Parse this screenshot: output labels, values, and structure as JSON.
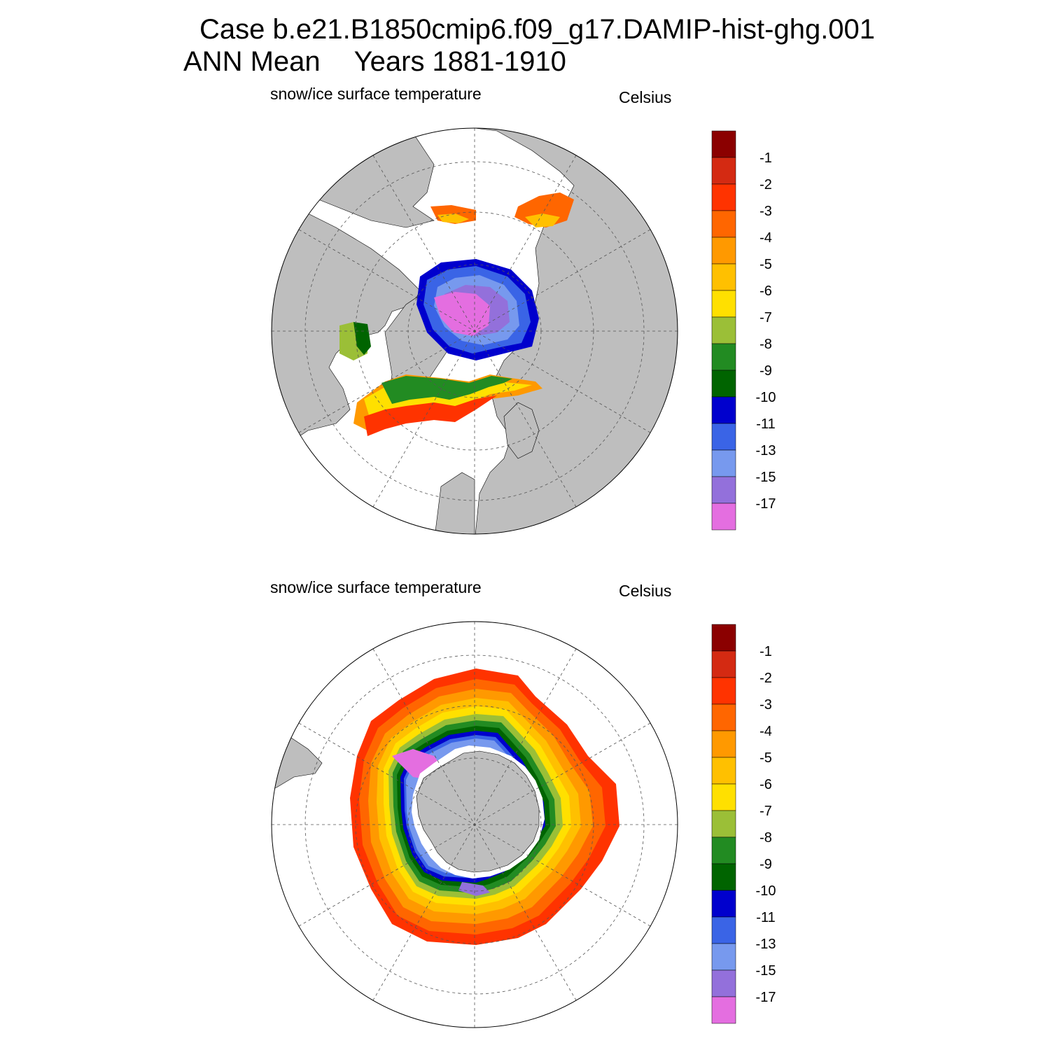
{
  "header": {
    "case_line": "Case b.e21.B1850cmip6.f09_g17.DAMIP-hist-ghg.001",
    "period_label": "ANN Mean",
    "years_label": "Years 1881-1910"
  },
  "panels": [
    {
      "variable_label": "snow/ice surface temperature",
      "units_label": "Celsius",
      "hemisphere": "north"
    },
    {
      "variable_label": "snow/ice surface temperature",
      "units_label": "Celsius",
      "hemisphere": "south"
    }
  ],
  "colorbar": {
    "tick_labels": [
      "-1",
      "-2",
      "-3",
      "-4",
      "-5",
      "-6",
      "-7",
      "-8",
      "-9",
      "-10",
      "-11",
      "-13",
      "-15",
      "-17"
    ],
    "colors": [
      "#8b0000",
      "#d42a12",
      "#ff3300",
      "#ff6600",
      "#ff9900",
      "#ffc000",
      "#ffe000",
      "#9bbf37",
      "#228b22",
      "#006400",
      "#0000cd",
      "#3a64e6",
      "#7799ee",
      "#9370db",
      "#e46ee0"
    ]
  },
  "style": {
    "land_color": "#bebebe",
    "ocean_color": "#ffffff"
  }
}
